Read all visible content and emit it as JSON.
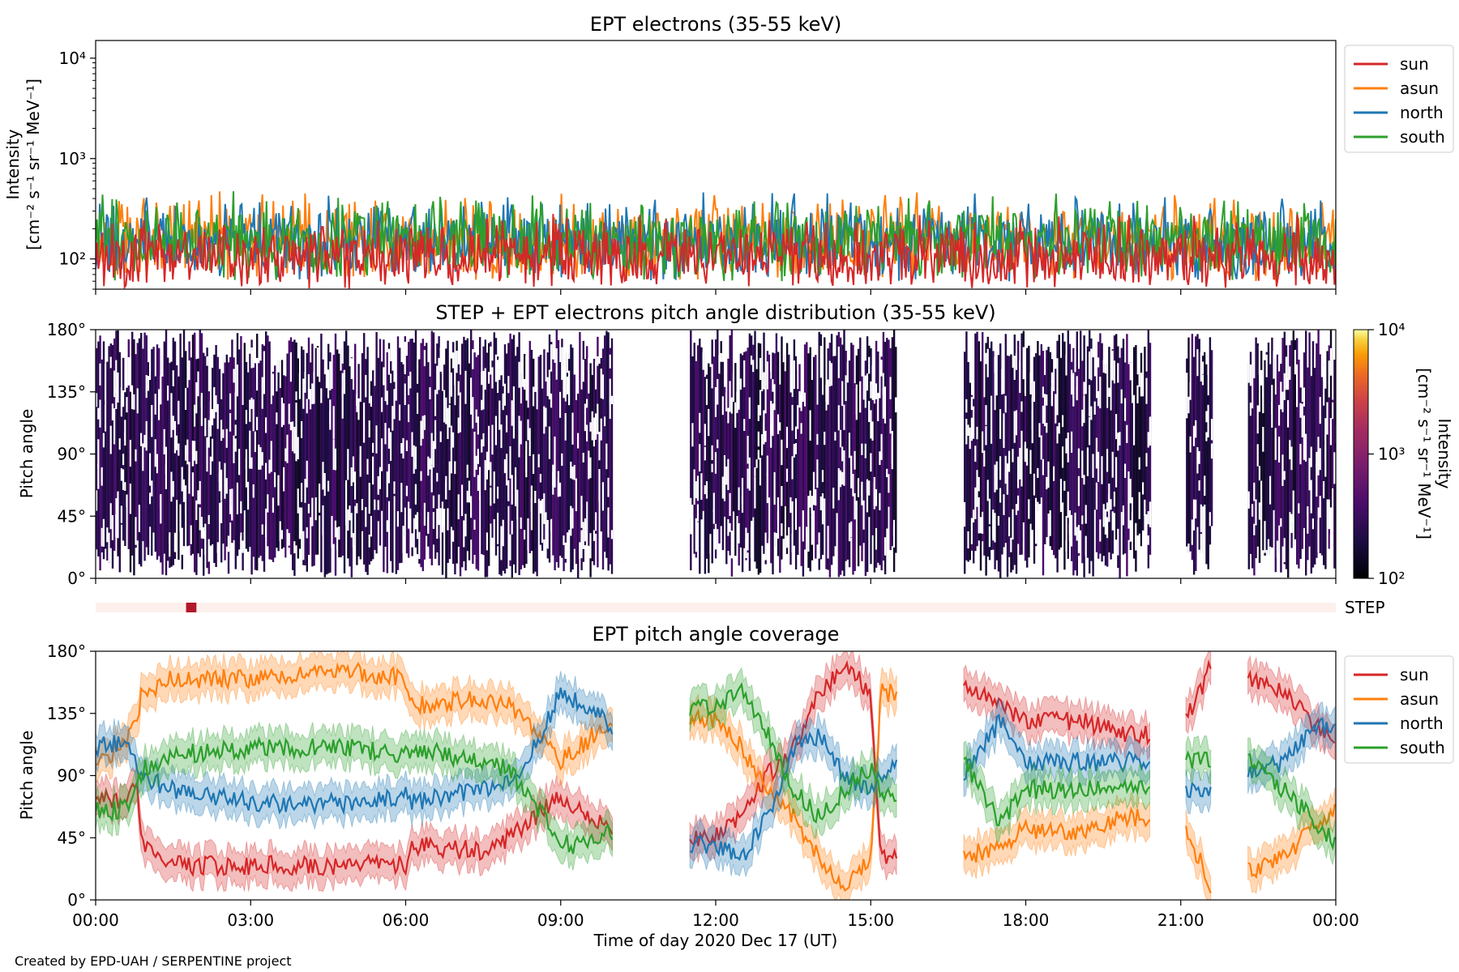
{
  "credit": "Created by EPD-UAH / SERPENTINE project",
  "colors": {
    "sun": "#d62728",
    "asun": "#ff7f0e",
    "north": "#1f77b4",
    "south": "#2ca02c",
    "step_strip_bg": "#fdf0ec",
    "step_marker": "#b2182b"
  },
  "time_axis": {
    "ticks": [
      "00:00",
      "03:00",
      "06:00",
      "09:00",
      "12:00",
      "15:00",
      "18:00",
      "21:00",
      "00:00"
    ],
    "label": "Time of day 2020 Dec 17 (UT)",
    "range_hours": [
      0,
      24
    ]
  },
  "chart_data": [
    {
      "type": "line",
      "title": "EPT electrons (35-55 keV)",
      "ylabel": "Intensity",
      "ylabel_units": "[cm⁻² s⁻¹ sr⁻¹ MeV⁻¹]",
      "yscale": "log",
      "ylim": [
        50,
        15000
      ],
      "yticks": [
        "10²",
        "10³",
        "10⁴"
      ],
      "ytick_values": [
        100,
        1000,
        10000
      ],
      "x_unit": "hours since 00:00 UT",
      "series": [
        {
          "name": "sun",
          "color": "#d62728",
          "typical_range": [
            50,
            300
          ]
        },
        {
          "name": "asun",
          "color": "#ff7f0e",
          "typical_range": [
            60,
            500
          ]
        },
        {
          "name": "north",
          "color": "#1f77b4",
          "typical_range": [
            60,
            500
          ]
        },
        {
          "name": "south",
          "color": "#2ca02c",
          "typical_range": [
            60,
            500
          ]
        }
      ],
      "legend": [
        "sun",
        "asun",
        "north",
        "south"
      ],
      "legend_position": "outside-right"
    },
    {
      "type": "heatmap",
      "title": "STEP + EPT electrons pitch angle distribution (35-55 keV)",
      "ylabel": "Pitch angle",
      "yticks": [
        "0°",
        "45°",
        "90°",
        "135°",
        "180°"
      ],
      "ylim": [
        0,
        180
      ],
      "data_intervals_hours": [
        [
          0,
          10
        ],
        [
          11.5,
          15.5
        ],
        [
          16.8,
          20.4
        ],
        [
          21.1,
          21.6
        ],
        [
          22.3,
          24
        ]
      ],
      "colorbar": {
        "label": "Intensity",
        "units": "[cm⁻² s⁻¹ sr⁻¹ MeV⁻¹]",
        "scale": "log",
        "range": [
          100,
          10000
        ],
        "ticks": [
          "10²",
          "10³",
          "10⁴"
        ],
        "colormap": "inferno"
      }
    },
    {
      "type": "strip",
      "label": "STEP",
      "marker_hours": [
        1.75,
        1.95
      ]
    },
    {
      "type": "line",
      "title": "EPT pitch angle coverage",
      "ylabel": "Pitch angle",
      "yticks": [
        "0°",
        "45°",
        "90°",
        "135°",
        "180°"
      ],
      "ylim": [
        0,
        180
      ],
      "x_unit": "hours since 00:00 UT",
      "band_halfwidth_deg": 12,
      "series": [
        {
          "name": "sun",
          "color": "#d62728",
          "points": [
            [
              0.0,
              75
            ],
            [
              0.5,
              70
            ],
            [
              0.8,
              80
            ],
            [
              0.9,
              40
            ],
            [
              1.5,
              25
            ],
            [
              3,
              25
            ],
            [
              5,
              25
            ],
            [
              6,
              25
            ],
            [
              6.1,
              40
            ],
            [
              7.5,
              35
            ],
            [
              8,
              45
            ],
            [
              8.5,
              60
            ],
            [
              9,
              75
            ],
            [
              9.5,
              60
            ],
            [
              10,
              50
            ],
            [
              11.5,
              45
            ],
            [
              12,
              45
            ],
            [
              12.5,
              60
            ],
            [
              13,
              90
            ],
            [
              13.5,
              110
            ],
            [
              14,
              150
            ],
            [
              14.5,
              170
            ],
            [
              15,
              150
            ],
            [
              15.2,
              30
            ],
            [
              15.5,
              30
            ],
            [
              16.8,
              155
            ],
            [
              17.5,
              140
            ],
            [
              18,
              130
            ],
            [
              19,
              130
            ],
            [
              20,
              120
            ],
            [
              20.4,
              120
            ],
            [
              21.1,
              130
            ],
            [
              21.6,
              170
            ],
            [
              22.3,
              160
            ],
            [
              23,
              150
            ],
            [
              23.5,
              130
            ],
            [
              24,
              115
            ]
          ]
        },
        {
          "name": "asun",
          "color": "#ff7f0e",
          "points": [
            [
              0.0,
              100
            ],
            [
              0.5,
              110
            ],
            [
              0.8,
              130
            ],
            [
              0.9,
              150
            ],
            [
              1.5,
              160
            ],
            [
              3,
              160
            ],
            [
              5,
              165
            ],
            [
              6,
              160
            ],
            [
              6.1,
              140
            ],
            [
              7.5,
              145
            ],
            [
              8,
              140
            ],
            [
              8.5,
              125
            ],
            [
              9,
              100
            ],
            [
              9.5,
              115
            ],
            [
              10,
              130
            ],
            [
              11.5,
              130
            ],
            [
              12,
              130
            ],
            [
              12.5,
              110
            ],
            [
              13,
              80
            ],
            [
              13.5,
              60
            ],
            [
              14,
              30
            ],
            [
              14.5,
              10
            ],
            [
              15,
              30
            ],
            [
              15.2,
              150
            ],
            [
              15.5,
              150
            ],
            [
              16.8,
              30
            ],
            [
              17.5,
              40
            ],
            [
              18,
              50
            ],
            [
              19,
              50
            ],
            [
              20,
              60
            ],
            [
              20.4,
              60
            ],
            [
              21.1,
              50
            ],
            [
              21.6,
              10
            ],
            [
              22.3,
              20
            ],
            [
              23,
              30
            ],
            [
              23.5,
              50
            ],
            [
              24,
              65
            ]
          ]
        },
        {
          "name": "north",
          "color": "#1f77b4",
          "points": [
            [
              0.0,
              110
            ],
            [
              0.5,
              115
            ],
            [
              0.8,
              100
            ],
            [
              0.9,
              90
            ],
            [
              1.5,
              80
            ],
            [
              3,
              70
            ],
            [
              5,
              70
            ],
            [
              6,
              75
            ],
            [
              6.1,
              70
            ],
            [
              7.5,
              80
            ],
            [
              8,
              85
            ],
            [
              8.5,
              110
            ],
            [
              9,
              150
            ],
            [
              9.5,
              140
            ],
            [
              10,
              125
            ],
            [
              11.5,
              40
            ],
            [
              12,
              40
            ],
            [
              12.5,
              30
            ],
            [
              13,
              60
            ],
            [
              13.5,
              110
            ],
            [
              14,
              120
            ],
            [
              14.5,
              90
            ],
            [
              15,
              80
            ],
            [
              15.2,
              90
            ],
            [
              15.5,
              100
            ],
            [
              16.8,
              90
            ],
            [
              17.5,
              130
            ],
            [
              18,
              100
            ],
            [
              19,
              100
            ],
            [
              20,
              100
            ],
            [
              20.4,
              100
            ],
            [
              21.1,
              80
            ],
            [
              21.6,
              80
            ],
            [
              22.3,
              90
            ],
            [
              23,
              100
            ],
            [
              23.5,
              120
            ],
            [
              24,
              130
            ]
          ]
        },
        {
          "name": "south",
          "color": "#2ca02c",
          "points": [
            [
              0.0,
              65
            ],
            [
              0.5,
              65
            ],
            [
              0.8,
              80
            ],
            [
              0.9,
              95
            ],
            [
              1.5,
              105
            ],
            [
              3,
              110
            ],
            [
              5,
              110
            ],
            [
              6,
              105
            ],
            [
              6.1,
              110
            ],
            [
              7.5,
              100
            ],
            [
              8,
              95
            ],
            [
              8.5,
              70
            ],
            [
              9,
              40
            ],
            [
              9.5,
              40
            ],
            [
              10,
              50
            ],
            [
              11.5,
              140
            ],
            [
              12,
              140
            ],
            [
              12.5,
              150
            ],
            [
              13,
              120
            ],
            [
              13.5,
              80
            ],
            [
              14,
              60
            ],
            [
              14.5,
              80
            ],
            [
              15,
              95
            ],
            [
              15.2,
              80
            ],
            [
              15.5,
              70
            ],
            [
              16.8,
              100
            ],
            [
              17.5,
              55
            ],
            [
              18,
              80
            ],
            [
              19,
              80
            ],
            [
              20,
              80
            ],
            [
              20.4,
              80
            ],
            [
              21.1,
              100
            ],
            [
              21.6,
              100
            ],
            [
              22.3,
              100
            ],
            [
              23,
              80
            ],
            [
              23.5,
              60
            ],
            [
              24,
              40
            ]
          ]
        }
      ],
      "data_intervals_hours": [
        [
          0,
          10
        ],
        [
          11.5,
          15.5
        ],
        [
          16.8,
          20.4
        ],
        [
          21.1,
          21.6
        ],
        [
          22.3,
          24
        ]
      ],
      "legend": [
        "sun",
        "asun",
        "north",
        "south"
      ],
      "legend_position": "outside-right",
      "xlabel": "Time of day 2020 Dec 17 (UT)"
    }
  ]
}
